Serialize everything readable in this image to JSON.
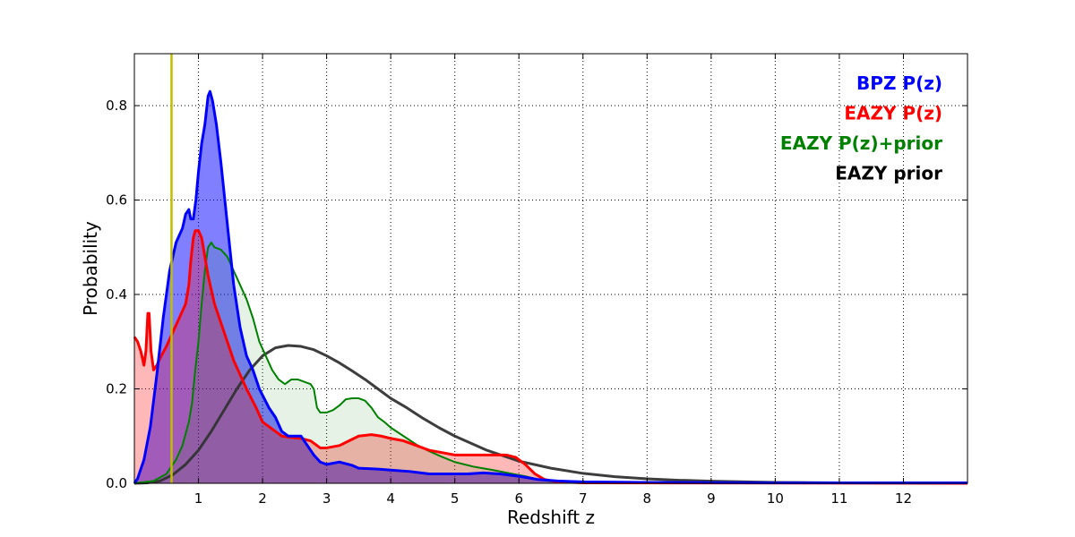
{
  "chart_data": {
    "type": "area",
    "title": "",
    "xlabel": "Redshift z",
    "ylabel": "Probability",
    "xlim": [
      0,
      13
    ],
    "ylim": [
      0,
      0.91
    ],
    "xticks": [
      1,
      2,
      3,
      4,
      5,
      6,
      7,
      8,
      9,
      10,
      11,
      12
    ],
    "yticks": [
      0.0,
      0.2,
      0.4,
      0.6,
      0.8
    ],
    "ytick_labels": [
      "0.0",
      "0.2",
      "0.4",
      "0.6",
      "0.8"
    ],
    "grid": true,
    "legend_position": "top-right",
    "vline": {
      "x": 0.58,
      "color": "#bfbf00"
    },
    "series": [
      {
        "name": "BPZ P(z)",
        "color": "#0000ff",
        "fill": "#0000ff",
        "fill_alpha": 0.5,
        "line_width": 3,
        "points": [
          [
            0,
            0
          ],
          [
            0.05,
            0.01
          ],
          [
            0.15,
            0.05
          ],
          [
            0.25,
            0.12
          ],
          [
            0.35,
            0.23
          ],
          [
            0.45,
            0.35
          ],
          [
            0.55,
            0.45
          ],
          [
            0.65,
            0.51
          ],
          [
            0.75,
            0.54
          ],
          [
            0.8,
            0.57
          ],
          [
            0.85,
            0.58
          ],
          [
            0.88,
            0.56
          ],
          [
            0.92,
            0.56
          ],
          [
            0.96,
            0.6
          ],
          [
            1.0,
            0.66
          ],
          [
            1.05,
            0.72
          ],
          [
            1.1,
            0.76
          ],
          [
            1.15,
            0.82
          ],
          [
            1.18,
            0.83
          ],
          [
            1.22,
            0.81
          ],
          [
            1.28,
            0.76
          ],
          [
            1.35,
            0.68
          ],
          [
            1.45,
            0.55
          ],
          [
            1.55,
            0.42
          ],
          [
            1.65,
            0.33
          ],
          [
            1.75,
            0.27
          ],
          [
            1.85,
            0.24
          ],
          [
            1.95,
            0.2
          ],
          [
            2.1,
            0.16
          ],
          [
            2.2,
            0.14
          ],
          [
            2.3,
            0.11
          ],
          [
            2.4,
            0.1
          ],
          [
            2.5,
            0.1
          ],
          [
            2.6,
            0.1
          ],
          [
            2.7,
            0.08
          ],
          [
            2.8,
            0.06
          ],
          [
            2.9,
            0.045
          ],
          [
            3.0,
            0.04
          ],
          [
            3.2,
            0.045
          ],
          [
            3.4,
            0.038
          ],
          [
            3.5,
            0.032
          ],
          [
            3.8,
            0.03
          ],
          [
            4.0,
            0.028
          ],
          [
            4.3,
            0.025
          ],
          [
            4.6,
            0.02
          ],
          [
            4.9,
            0.02
          ],
          [
            5.2,
            0.02
          ],
          [
            5.45,
            0.022
          ],
          [
            5.7,
            0.02
          ],
          [
            6.0,
            0.015
          ],
          [
            6.3,
            0.008
          ],
          [
            6.6,
            0.005
          ],
          [
            7.0,
            0.003
          ],
          [
            8,
            0.002
          ],
          [
            10,
            0.001
          ],
          [
            12,
            0.001
          ],
          [
            13,
            0.001
          ]
        ]
      },
      {
        "name": "EAZY P(z)",
        "color": "#ff0000",
        "fill": "#ff0000",
        "fill_alpha": 0.28,
        "line_width": 3,
        "points": [
          [
            0,
            0.31
          ],
          [
            0.05,
            0.3
          ],
          [
            0.1,
            0.28
          ],
          [
            0.15,
            0.25
          ],
          [
            0.18,
            0.28
          ],
          [
            0.21,
            0.36
          ],
          [
            0.23,
            0.36
          ],
          [
            0.26,
            0.28
          ],
          [
            0.3,
            0.24
          ],
          [
            0.35,
            0.25
          ],
          [
            0.42,
            0.27
          ],
          [
            0.5,
            0.29
          ],
          [
            0.6,
            0.32
          ],
          [
            0.7,
            0.35
          ],
          [
            0.8,
            0.38
          ],
          [
            0.85,
            0.42
          ],
          [
            0.88,
            0.47
          ],
          [
            0.92,
            0.52
          ],
          [
            0.95,
            0.535
          ],
          [
            1.0,
            0.535
          ],
          [
            1.05,
            0.52
          ],
          [
            1.1,
            0.48
          ],
          [
            1.15,
            0.44
          ],
          [
            1.25,
            0.38
          ],
          [
            1.35,
            0.34
          ],
          [
            1.45,
            0.3
          ],
          [
            1.55,
            0.26
          ],
          [
            1.65,
            0.23
          ],
          [
            1.75,
            0.2
          ],
          [
            1.9,
            0.16
          ],
          [
            2.0,
            0.13
          ],
          [
            2.1,
            0.12
          ],
          [
            2.2,
            0.11
          ],
          [
            2.3,
            0.1
          ],
          [
            2.45,
            0.097
          ],
          [
            2.6,
            0.095
          ],
          [
            2.75,
            0.09
          ],
          [
            2.9,
            0.075
          ],
          [
            3.0,
            0.075
          ],
          [
            3.2,
            0.08
          ],
          [
            3.35,
            0.09
          ],
          [
            3.5,
            0.1
          ],
          [
            3.7,
            0.103
          ],
          [
            3.85,
            0.1
          ],
          [
            4.0,
            0.095
          ],
          [
            4.2,
            0.09
          ],
          [
            4.4,
            0.08
          ],
          [
            4.6,
            0.07
          ],
          [
            4.8,
            0.065
          ],
          [
            5.0,
            0.06
          ],
          [
            5.3,
            0.06
          ],
          [
            5.6,
            0.06
          ],
          [
            5.8,
            0.06
          ],
          [
            5.95,
            0.055
          ],
          [
            6.1,
            0.04
          ],
          [
            6.25,
            0.02
          ],
          [
            6.4,
            0.008
          ],
          [
            6.6,
            0.003
          ],
          [
            7,
            0.001
          ],
          [
            13,
            0
          ]
        ]
      },
      {
        "name": "EAZY P(z)+prior",
        "color": "#008000",
        "fill": "#008000",
        "fill_alpha": 0.1,
        "line_width": 2,
        "points": [
          [
            0,
            0
          ],
          [
            0.3,
            0.005
          ],
          [
            0.5,
            0.02
          ],
          [
            0.65,
            0.05
          ],
          [
            0.75,
            0.08
          ],
          [
            0.85,
            0.13
          ],
          [
            0.9,
            0.17
          ],
          [
            0.95,
            0.24
          ],
          [
            1.0,
            0.3
          ],
          [
            1.05,
            0.38
          ],
          [
            1.1,
            0.45
          ],
          [
            1.15,
            0.5
          ],
          [
            1.2,
            0.51
          ],
          [
            1.25,
            0.5
          ],
          [
            1.35,
            0.495
          ],
          [
            1.45,
            0.48
          ],
          [
            1.55,
            0.45
          ],
          [
            1.65,
            0.42
          ],
          [
            1.75,
            0.39
          ],
          [
            1.85,
            0.35
          ],
          [
            1.95,
            0.3
          ],
          [
            2.05,
            0.27
          ],
          [
            2.15,
            0.24
          ],
          [
            2.25,
            0.22
          ],
          [
            2.35,
            0.21
          ],
          [
            2.45,
            0.22
          ],
          [
            2.55,
            0.22
          ],
          [
            2.65,
            0.215
          ],
          [
            2.75,
            0.21
          ],
          [
            2.8,
            0.2
          ],
          [
            2.85,
            0.16
          ],
          [
            2.9,
            0.15
          ],
          [
            3.0,
            0.15
          ],
          [
            3.1,
            0.155
          ],
          [
            3.2,
            0.165
          ],
          [
            3.3,
            0.178
          ],
          [
            3.4,
            0.18
          ],
          [
            3.5,
            0.18
          ],
          [
            3.6,
            0.175
          ],
          [
            3.7,
            0.16
          ],
          [
            3.8,
            0.14
          ],
          [
            3.9,
            0.13
          ],
          [
            4.0,
            0.118
          ],
          [
            4.2,
            0.1
          ],
          [
            4.4,
            0.082
          ],
          [
            4.6,
            0.068
          ],
          [
            4.8,
            0.056
          ],
          [
            5.0,
            0.045
          ],
          [
            5.3,
            0.035
          ],
          [
            5.6,
            0.028
          ],
          [
            5.9,
            0.02
          ],
          [
            6.1,
            0.015
          ],
          [
            6.3,
            0.008
          ],
          [
            6.5,
            0.004
          ],
          [
            7,
            0.001
          ],
          [
            13,
            0
          ]
        ]
      },
      {
        "name": "EAZY prior",
        "color": "#333333",
        "fill": "none",
        "fill_alpha": 0,
        "line_width": 3,
        "points": [
          [
            0,
            0
          ],
          [
            0.2,
            0.001
          ],
          [
            0.4,
            0.005
          ],
          [
            0.6,
            0.018
          ],
          [
            0.8,
            0.04
          ],
          [
            1.0,
            0.07
          ],
          [
            1.2,
            0.11
          ],
          [
            1.4,
            0.155
          ],
          [
            1.6,
            0.2
          ],
          [
            1.8,
            0.24
          ],
          [
            2.0,
            0.27
          ],
          [
            2.2,
            0.287
          ],
          [
            2.4,
            0.292
          ],
          [
            2.6,
            0.29
          ],
          [
            2.8,
            0.283
          ],
          [
            3.0,
            0.27
          ],
          [
            3.2,
            0.255
          ],
          [
            3.4,
            0.238
          ],
          [
            3.6,
            0.22
          ],
          [
            3.8,
            0.2
          ],
          [
            4.0,
            0.18
          ],
          [
            4.25,
            0.16
          ],
          [
            4.5,
            0.138
          ],
          [
            4.75,
            0.118
          ],
          [
            5.0,
            0.1
          ],
          [
            5.5,
            0.07
          ],
          [
            6.0,
            0.047
          ],
          [
            6.5,
            0.032
          ],
          [
            7.0,
            0.021
          ],
          [
            7.5,
            0.014
          ],
          [
            8.0,
            0.0095
          ],
          [
            8.5,
            0.0065
          ],
          [
            9.0,
            0.0045
          ],
          [
            10.0,
            0.002
          ],
          [
            11.0,
            0.001
          ],
          [
            12.0,
            0.0005
          ],
          [
            13.0,
            0.0002
          ]
        ]
      }
    ],
    "legend": [
      {
        "label": "BPZ P(z)",
        "color": "#0000ff"
      },
      {
        "label": "EAZY P(z)",
        "color": "#ff0000"
      },
      {
        "label": "EAZY P(z)+prior",
        "color": "#008000"
      },
      {
        "label": "EAZY prior",
        "color": "#000000"
      }
    ]
  }
}
